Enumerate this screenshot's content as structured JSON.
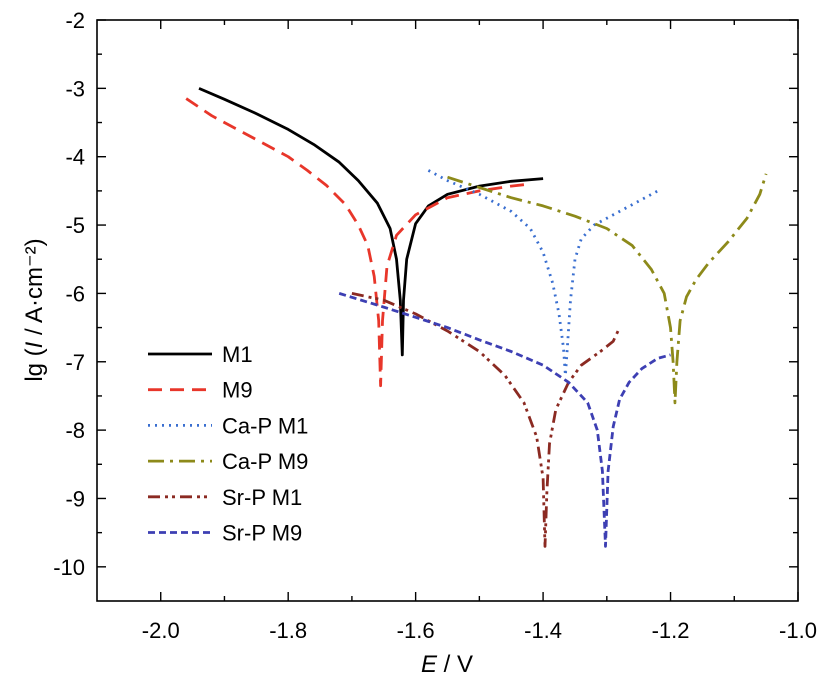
{
  "chart_data": {
    "type": "line",
    "xlabel": "E / V",
    "ylabel": "lg (I / A·cm⁻²)",
    "xlim": [
      -2.1,
      -1.0
    ],
    "ylim": [
      -10.5,
      -2.0
    ],
    "xticks": [
      -2.0,
      -1.8,
      -1.6,
      -1.4,
      -1.2,
      -1.0
    ],
    "xtick_labels": [
      "-2.0",
      "-1.8",
      "-1.6",
      "-1.4",
      "-1.2",
      "-1.0"
    ],
    "yticks": [
      -2,
      -3,
      -4,
      -5,
      -6,
      -7,
      -8,
      -9,
      -10
    ],
    "ytick_labels": [
      "-2",
      "-3",
      "-4",
      "-5",
      "-6",
      "-7",
      "-8",
      "-9",
      "-10"
    ],
    "grid": false,
    "legend_position": "bottom-left",
    "series": [
      {
        "name": "M1",
        "color": "#000000",
        "dash": "solid",
        "points": [
          [
            -1.94,
            -3.0
          ],
          [
            -1.9,
            -3.16
          ],
          [
            -1.85,
            -3.37
          ],
          [
            -1.8,
            -3.6
          ],
          [
            -1.76,
            -3.82
          ],
          [
            -1.72,
            -4.08
          ],
          [
            -1.69,
            -4.35
          ],
          [
            -1.66,
            -4.68
          ],
          [
            -1.64,
            -5.05
          ],
          [
            -1.63,
            -5.5
          ],
          [
            -1.624,
            -6.1
          ],
          [
            -1.621,
            -6.9
          ],
          [
            -1.619,
            -6.1
          ],
          [
            -1.614,
            -5.5
          ],
          [
            -1.6,
            -4.98
          ],
          [
            -1.58,
            -4.72
          ],
          [
            -1.55,
            -4.55
          ],
          [
            -1.5,
            -4.43
          ],
          [
            -1.45,
            -4.36
          ],
          [
            -1.4,
            -4.32
          ]
        ]
      },
      {
        "name": "M9",
        "color": "#e8362a",
        "dash": "14,8",
        "points": [
          [
            -1.96,
            -3.15
          ],
          [
            -1.92,
            -3.4
          ],
          [
            -1.88,
            -3.6
          ],
          [
            -1.84,
            -3.8
          ],
          [
            -1.8,
            -4.0
          ],
          [
            -1.77,
            -4.2
          ],
          [
            -1.74,
            -4.42
          ],
          [
            -1.71,
            -4.7
          ],
          [
            -1.69,
            -5.0
          ],
          [
            -1.675,
            -5.3
          ],
          [
            -1.665,
            -5.75
          ],
          [
            -1.658,
            -6.4
          ],
          [
            -1.655,
            -7.35
          ],
          [
            -1.652,
            -6.4
          ],
          [
            -1.645,
            -5.6
          ],
          [
            -1.63,
            -5.15
          ],
          [
            -1.6,
            -4.85
          ],
          [
            -1.55,
            -4.6
          ],
          [
            -1.5,
            -4.5
          ],
          [
            -1.45,
            -4.43
          ],
          [
            -1.42,
            -4.4
          ]
        ]
      },
      {
        "name": "Ca-P M1",
        "color": "#3a6fd0",
        "dash": "2,5",
        "points": [
          [
            -1.58,
            -4.2
          ],
          [
            -1.55,
            -4.35
          ],
          [
            -1.5,
            -4.55
          ],
          [
            -1.45,
            -4.8
          ],
          [
            -1.42,
            -5.05
          ],
          [
            -1.4,
            -5.4
          ],
          [
            -1.385,
            -5.85
          ],
          [
            -1.375,
            -6.3
          ],
          [
            -1.368,
            -6.8
          ],
          [
            -1.365,
            -7.2
          ],
          [
            -1.362,
            -6.8
          ],
          [
            -1.357,
            -6.1
          ],
          [
            -1.35,
            -5.5
          ],
          [
            -1.34,
            -5.2
          ],
          [
            -1.32,
            -5.0
          ],
          [
            -1.29,
            -4.85
          ],
          [
            -1.26,
            -4.7
          ],
          [
            -1.22,
            -4.5
          ]
        ]
      },
      {
        "name": "Ca-P M9",
        "color": "#8d8a1a",
        "dash": "16,6,3,6",
        "points": [
          [
            -1.55,
            -4.3
          ],
          [
            -1.5,
            -4.45
          ],
          [
            -1.45,
            -4.6
          ],
          [
            -1.4,
            -4.72
          ],
          [
            -1.35,
            -4.87
          ],
          [
            -1.3,
            -5.05
          ],
          [
            -1.26,
            -5.3
          ],
          [
            -1.23,
            -5.65
          ],
          [
            -1.21,
            -6.0
          ],
          [
            -1.2,
            -6.5
          ],
          [
            -1.196,
            -7.0
          ],
          [
            -1.193,
            -7.6
          ],
          [
            -1.19,
            -7.0
          ],
          [
            -1.185,
            -6.4
          ],
          [
            -1.175,
            -6.05
          ],
          [
            -1.16,
            -5.8
          ],
          [
            -1.14,
            -5.55
          ],
          [
            -1.11,
            -5.25
          ],
          [
            -1.08,
            -4.9
          ],
          [
            -1.06,
            -4.55
          ],
          [
            -1.05,
            -4.25
          ]
        ]
      },
      {
        "name": "Sr-P M1",
        "color": "#8b2a22",
        "dash": "12,5,3,4,3,5",
        "points": [
          [
            -1.7,
            -6.0
          ],
          [
            -1.65,
            -6.1
          ],
          [
            -1.6,
            -6.3
          ],
          [
            -1.55,
            -6.55
          ],
          [
            -1.5,
            -6.85
          ],
          [
            -1.46,
            -7.2
          ],
          [
            -1.43,
            -7.6
          ],
          [
            -1.41,
            -8.1
          ],
          [
            -1.4,
            -8.7
          ],
          [
            -1.397,
            -9.7
          ],
          [
            -1.394,
            -8.9
          ],
          [
            -1.39,
            -8.2
          ],
          [
            -1.38,
            -7.7
          ],
          [
            -1.36,
            -7.3
          ],
          [
            -1.34,
            -7.05
          ],
          [
            -1.31,
            -6.85
          ],
          [
            -1.29,
            -6.7
          ],
          [
            -1.28,
            -6.5
          ]
        ]
      },
      {
        "name": "Sr-P M9",
        "color": "#3d3fb3",
        "dash": "7,4",
        "points": [
          [
            -1.72,
            -6.0
          ],
          [
            -1.65,
            -6.2
          ],
          [
            -1.6,
            -6.35
          ],
          [
            -1.55,
            -6.5
          ],
          [
            -1.5,
            -6.68
          ],
          [
            -1.45,
            -6.85
          ],
          [
            -1.4,
            -7.05
          ],
          [
            -1.36,
            -7.3
          ],
          [
            -1.33,
            -7.6
          ],
          [
            -1.315,
            -8.0
          ],
          [
            -1.307,
            -8.6
          ],
          [
            -1.302,
            -9.7
          ],
          [
            -1.298,
            -8.6
          ],
          [
            -1.29,
            -7.95
          ],
          [
            -1.28,
            -7.55
          ],
          [
            -1.265,
            -7.3
          ],
          [
            -1.245,
            -7.1
          ],
          [
            -1.22,
            -6.95
          ],
          [
            -1.2,
            -6.9
          ]
        ]
      }
    ]
  }
}
